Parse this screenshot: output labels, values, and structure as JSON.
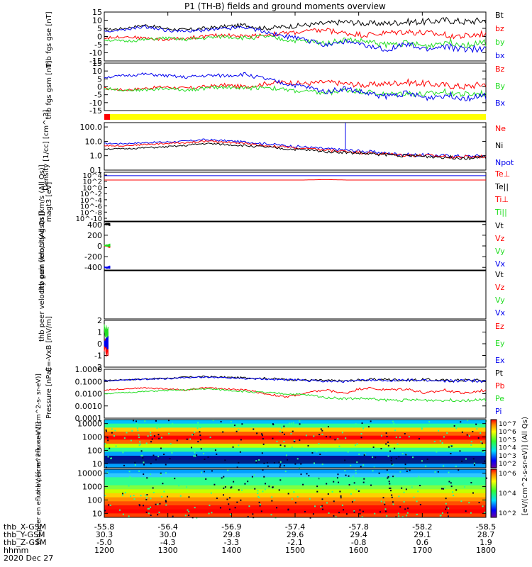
{
  "title": "P1 (TH-B) fields and ground moments overview",
  "colors": {
    "black": "#000000",
    "red": "#ff0000",
    "green": "#22dd22",
    "blue": "#0000ee",
    "yellow": "#ffff00"
  },
  "chart_data": [
    {
      "id": "panel1",
      "type": "line",
      "ylabel": [
        "thb",
        "fgs",
        "gse",
        "[nT]"
      ],
      "ytick_labels": [
        "15",
        "10",
        "5",
        "0",
        "-5",
        "-10",
        "-15"
      ],
      "yticks": [
        15,
        10,
        5,
        0,
        -5,
        -10,
        -15
      ],
      "ylim": [
        -15,
        15
      ],
      "legend": [
        {
          "label": "Bt",
          "color": "black"
        },
        {
          "label": "bz",
          "color": "red"
        },
        {
          "label": "by",
          "color": "green"
        },
        {
          "label": "bx",
          "color": "blue"
        }
      ],
      "series": [
        {
          "name": "Bt",
          "color": "black",
          "values": [
            4,
            5,
            7,
            5,
            4,
            5,
            6,
            7,
            5,
            6,
            7,
            8,
            9,
            8,
            8,
            9,
            9,
            10,
            9,
            10
          ]
        },
        {
          "name": "bz",
          "color": "red",
          "values": [
            -1,
            0,
            -1,
            -2,
            -1,
            0,
            1,
            0,
            1,
            2,
            3,
            4,
            2,
            1,
            2,
            3,
            2,
            1,
            0,
            2
          ]
        },
        {
          "name": "by",
          "color": "green",
          "values": [
            -2,
            -3,
            -2,
            -1,
            -2,
            -1,
            0,
            -1,
            0,
            -2,
            -3,
            -4,
            -2,
            -3,
            -5,
            -4,
            -6,
            -3,
            -5,
            -4
          ]
        },
        {
          "name": "bx",
          "color": "blue",
          "values": [
            3,
            4,
            6,
            4,
            3,
            4,
            5,
            6,
            3,
            0,
            -2,
            -5,
            -3,
            -6,
            -8,
            -5,
            -8,
            -6,
            -8,
            -7
          ]
        }
      ]
    },
    {
      "id": "panel2",
      "type": "line",
      "ylabel": [
        "thb",
        "fgs",
        "gsm",
        "[nT]"
      ],
      "ytick_labels": [
        "15",
        "10",
        "5",
        "0",
        "-5",
        "-10",
        "-15"
      ],
      "yticks": [
        15,
        10,
        5,
        0,
        -5,
        -10,
        -15
      ],
      "ylim": [
        -15,
        15
      ],
      "legend": [
        {
          "label": "Bz",
          "color": "red"
        },
        {
          "label": "By",
          "color": "green"
        },
        {
          "label": "Bx",
          "color": "blue"
        }
      ],
      "series": [
        {
          "name": "Bz",
          "color": "red",
          "values": [
            -1,
            -2,
            -1,
            0,
            -1,
            0,
            1,
            0,
            2,
            3,
            2,
            3,
            2,
            1,
            2,
            3,
            2,
            1,
            0,
            2
          ]
        },
        {
          "name": "By",
          "color": "green",
          "values": [
            -1,
            -2,
            -2,
            -1,
            -2,
            -1,
            0,
            -1,
            0,
            -2,
            -3,
            -4,
            -2,
            -3,
            -5,
            -4,
            -5,
            -3,
            -5,
            -4
          ]
        },
        {
          "name": "Bx",
          "color": "blue",
          "values": [
            6,
            7,
            8,
            7,
            6,
            7,
            7,
            8,
            5,
            2,
            0,
            -3,
            -1,
            -4,
            -6,
            -4,
            -7,
            -5,
            -7,
            -6
          ]
        }
      ]
    },
    {
      "id": "panel4",
      "type": "line",
      "scale": "log",
      "ylabel": [
        "Density",
        "[1/cc]",
        "[cm^-3]"
      ],
      "ytick_labels": [
        "100.0",
        "10.0",
        "1.0",
        "0.1"
      ],
      "yticks": [
        100,
        10,
        1,
        0.1
      ],
      "ylim": [
        0.1,
        200
      ],
      "legend": [
        {
          "label": "Ne",
          "color": "red"
        },
        {
          "label": "Ni",
          "color": "black"
        },
        {
          "label": "Npot",
          "color": "blue"
        }
      ],
      "series": [
        {
          "name": "Npot",
          "color": "blue",
          "values": [
            7,
            7,
            8,
            9,
            10,
            13,
            11,
            9,
            7,
            5,
            4,
            3,
            2.5,
            2,
            1.5,
            1.2,
            1.1,
            1.0,
            0.9,
            1.0
          ]
        },
        {
          "name": "Ne",
          "color": "red",
          "values": [
            5,
            5,
            6,
            7,
            8,
            10,
            9,
            7,
            5,
            4,
            3,
            2.5,
            2,
            1.6,
            1.3,
            1.1,
            1.0,
            0.9,
            0.8,
            0.9
          ]
        },
        {
          "name": "Ni",
          "color": "black",
          "values": [
            3,
            3,
            3.5,
            4,
            5,
            7,
            6,
            5,
            4,
            3,
            2.5,
            2,
            1.7,
            1.4,
            1.2,
            1.0,
            0.9,
            0.8,
            0.7,
            0.8
          ]
        }
      ]
    },
    {
      "id": "panel5",
      "type": "line",
      "scale": "log",
      "ylabel": [
        "magt3",
        "[eV]"
      ],
      "ytick_labels": [
        "10^4",
        "10^2",
        "10^0",
        "10^-2",
        "10^-4",
        "10^-6",
        "10^-8",
        "10^-10"
      ],
      "ylim": [
        1e-10,
        10000.0
      ],
      "legend": [
        {
          "label": "Te⊥",
          "color": "red"
        },
        {
          "label": "Te||",
          "color": "black"
        },
        {
          "label": "Ti⊥",
          "color": "red"
        },
        {
          "label": "Ti||",
          "color": "green"
        }
      ],
      "series": [
        {
          "name": "Ti",
          "color": "blue",
          "values": [
            1000,
            1000,
            1000,
            1000,
            1000,
            1000,
            1000,
            1000,
            1000,
            1000,
            1000,
            1000,
            1000,
            1000,
            1000,
            1000,
            1000,
            1000,
            1000,
            1000
          ]
        },
        {
          "name": "Te",
          "color": "red",
          "values": [
            60,
            60,
            60,
            60,
            60,
            60,
            60,
            60,
            60,
            60,
            60,
            80,
            60,
            60,
            60,
            60,
            60,
            60,
            60,
            60
          ]
        }
      ]
    },
    {
      "id": "panel6",
      "type": "line",
      "ylabel": [
        "thb",
        "peir",
        "velocity",
        "gsm",
        "[km/s (All Qs)]"
      ],
      "ytick_labels": [
        "400",
        "200",
        "0",
        "-200",
        "-400"
      ],
      "yticks": [
        400,
        200,
        0,
        -200,
        -400
      ],
      "ylim": [
        -450,
        450
      ],
      "legend": [
        {
          "label": "Vt",
          "color": "black"
        },
        {
          "label": "Vz",
          "color": "red"
        },
        {
          "label": "Vy",
          "color": "green"
        },
        {
          "label": "Vx",
          "color": "blue"
        }
      ],
      "series": [
        {
          "name": "Vt",
          "color": "black",
          "values": [
            400,
            410,
            400
          ]
        },
        {
          "name": "Vz",
          "color": "red",
          "values": [
            0,
            10,
            -10
          ]
        },
        {
          "name": "Vy",
          "color": "green",
          "values": [
            10,
            5,
            15
          ]
        },
        {
          "name": "Vx",
          "color": "blue",
          "values": [
            -400,
            -405,
            -395
          ]
        }
      ]
    },
    {
      "id": "panel7",
      "type": "line",
      "ylabel": [
        "thb",
        "peer",
        "velocity",
        "gsm",
        "[km/s (All Qs)]"
      ],
      "ytick_labels": [],
      "legend": [
        {
          "label": "Vt",
          "color": "black"
        },
        {
          "label": "Vz",
          "color": "red"
        },
        {
          "label": "Vy",
          "color": "green"
        },
        {
          "label": "Vx",
          "color": "blue"
        }
      ],
      "series": []
    },
    {
      "id": "panel8",
      "type": "line",
      "ylabel": [
        "E=-VxB",
        "[mV/m]"
      ],
      "ytick_labels": [
        "2",
        "1",
        "0",
        "-1",
        "-2"
      ],
      "yticks": [
        2,
        1,
        0,
        -1,
        -2
      ],
      "ylim": [
        -2,
        2
      ],
      "legend": [
        {
          "label": "Ez",
          "color": "red"
        },
        {
          "label": "Ey",
          "color": "green"
        },
        {
          "label": "Ex",
          "color": "blue"
        }
      ],
      "series": [
        {
          "name": "Ey",
          "color": "green",
          "values": [
            1.5,
            0.8,
            1.2,
            0.6,
            1.0
          ]
        },
        {
          "name": "Ez",
          "color": "red",
          "values": [
            -0.5,
            0.2,
            -0.8,
            -0.2,
            -0.6
          ]
        },
        {
          "name": "Ex",
          "color": "blue",
          "values": [
            0.1,
            -0.1,
            0.2,
            0.0,
            0.1
          ]
        }
      ]
    },
    {
      "id": "panel9",
      "type": "line",
      "scale": "log",
      "ylabel": [
        "Pressure",
        "[nPa]"
      ],
      "ytick_labels": [
        "1.0000",
        "0.1000",
        "0.0100",
        "0.0010",
        "0.0001"
      ],
      "yticks": [
        1,
        0.1,
        0.01,
        0.001,
        0.0001
      ],
      "ylim": [
        0.0001,
        1
      ],
      "legend": [
        {
          "label": "Pt",
          "color": "black"
        },
        {
          "label": "Pb",
          "color": "red"
        },
        {
          "label": "Pe",
          "color": "green"
        },
        {
          "label": "Pi",
          "color": "blue"
        }
      ],
      "series": [
        {
          "name": "Pt",
          "color": "black",
          "values": [
            0.12,
            0.14,
            0.16,
            0.18,
            0.22,
            0.25,
            0.22,
            0.2,
            0.18,
            0.15,
            0.13,
            0.12,
            0.11,
            0.14,
            0.15,
            0.13,
            0.14,
            0.12,
            0.13,
            0.12
          ]
        },
        {
          "name": "Pb",
          "color": "red",
          "values": [
            0.02,
            0.025,
            0.03,
            0.025,
            0.02,
            0.03,
            0.025,
            0.02,
            0.01,
            0.005,
            0.01,
            0.02,
            0.01,
            0.03,
            0.02,
            0.025,
            0.01,
            0.02,
            0.01,
            0.02
          ]
        },
        {
          "name": "Pe",
          "color": "green",
          "values": [
            0.01,
            0.012,
            0.015,
            0.018,
            0.02,
            0.025,
            0.02,
            0.015,
            0.012,
            0.01,
            0.008,
            0.005,
            0.004,
            0.004,
            0.003,
            0.003,
            0.003,
            0.003,
            0.003,
            0.003
          ]
        },
        {
          "name": "Pi",
          "color": "blue",
          "values": [
            0.11,
            0.13,
            0.15,
            0.17,
            0.2,
            0.23,
            0.2,
            0.18,
            0.16,
            0.14,
            0.12,
            0.11,
            0.1,
            0.12,
            0.13,
            0.12,
            0.12,
            0.11,
            0.12,
            0.11
          ]
        }
      ]
    },
    {
      "id": "panel10",
      "type": "heatmap",
      "scale": "log",
      "ylabel": [
        "thb",
        "peir",
        "en",
        "eflux",
        "eV",
        "[(cm^2-s-",
        "sr-eV)]"
      ],
      "ytick_labels": [
        "10000",
        "1000",
        "100",
        "10"
      ],
      "yticks": [
        10000,
        1000,
        100,
        10
      ],
      "ylim": [
        5,
        20000
      ],
      "colorbar_ticks": [
        "10^7",
        "10^6",
        "10^5",
        "10^4",
        "10^3",
        "10^2"
      ],
      "colorbar_label": "[eV/(cm^2-s-sr-eV)] (All Qs)"
    },
    {
      "id": "panel11",
      "type": "heatmap",
      "scale": "log",
      "ylabel": [
        "thb",
        "peer",
        "en",
        "eflux",
        "eV",
        "[(cm^2-s-",
        "sr-eV)]"
      ],
      "ytick_labels": [
        "10000",
        "1000",
        "100",
        "10"
      ],
      "yticks": [
        10000,
        1000,
        100,
        10
      ],
      "ylim": [
        5,
        20000
      ],
      "colorbar_ticks": [
        "10^6",
        "10^4",
        "10^2"
      ],
      "colorbar_label": "[eV/(cm^2-s-sr-eV)]"
    }
  ],
  "ephemeris": {
    "rows": [
      {
        "label": "thb_X-GSM",
        "values": [
          "-55.8",
          "-56.4",
          "-56.9",
          "-57.4",
          "-57.8",
          "-58.2",
          "-58.5"
        ]
      },
      {
        "label": "thb_Y-GSM",
        "values": [
          "30.3",
          "30.0",
          "29.8",
          "29.6",
          "29.4",
          "29.1",
          "28.7"
        ]
      },
      {
        "label": "thb_Z-GSM",
        "values": [
          "-5.0",
          "-4.3",
          "-3.3",
          "-2.1",
          "-0.8",
          "0.6",
          "1.9"
        ]
      },
      {
        "label": "hhmm",
        "values": [
          "1200",
          "1300",
          "1400",
          "1500",
          "1600",
          "1700",
          "1800"
        ]
      }
    ],
    "date": "2020 Dec 27"
  }
}
